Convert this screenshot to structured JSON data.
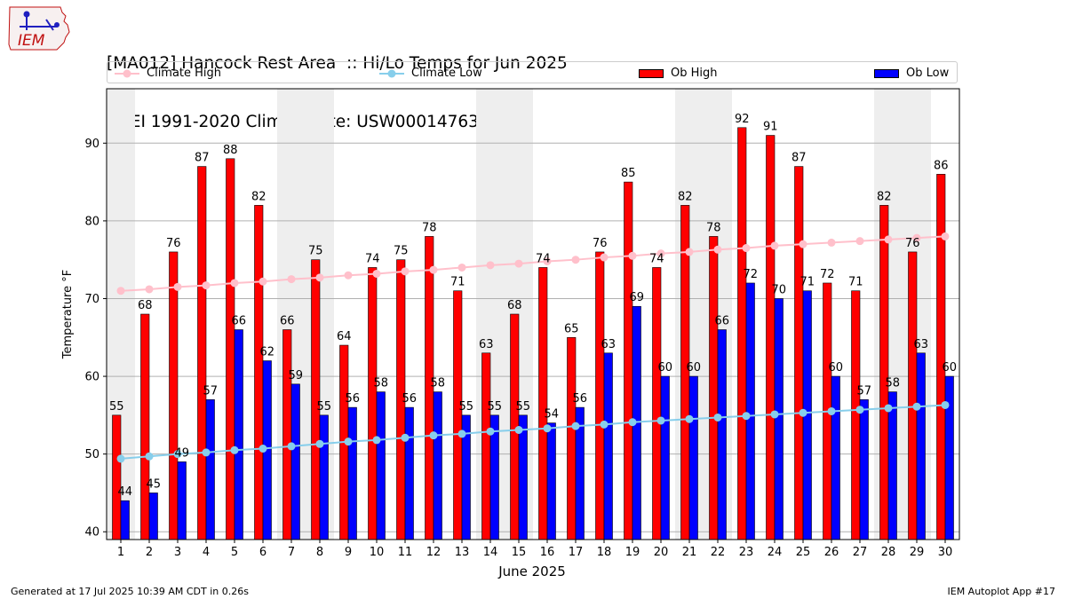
{
  "header": {
    "title_line1": "[MA012] Hancock Rest Area  :: Hi/Lo Temps for Jun 2025",
    "title_line2": "NCEI 1991-2020 Climate Site: USW00014763"
  },
  "logo": {
    "text": "IEM"
  },
  "footer": {
    "generated": "Generated at 17 Jul 2025 10:39 AM CDT in 0.26s",
    "app": "IEM Autoplot App #17"
  },
  "colors": {
    "ob_high": "#ff0000",
    "ob_low": "#0000ff",
    "climate_high": "#ffc0cb",
    "climate_low": "#87ceeb",
    "weekend_band": "#eeeeee"
  },
  "chart_data": {
    "type": "bar",
    "xlabel": "June 2025",
    "ylabel": "Temperature °F",
    "ylim": [
      39,
      97
    ],
    "yticks": [
      40,
      50,
      60,
      70,
      80,
      90
    ],
    "grid": true,
    "legend": "top",
    "categories": [
      1,
      2,
      3,
      4,
      5,
      6,
      7,
      8,
      9,
      10,
      11,
      12,
      13,
      14,
      15,
      16,
      17,
      18,
      19,
      20,
      21,
      22,
      23,
      24,
      25,
      26,
      27,
      28,
      29,
      30
    ],
    "weekend_days": [
      1,
      7,
      8,
      14,
      15,
      21,
      22,
      28,
      29
    ],
    "series": [
      {
        "name": "Ob High",
        "kind": "bar",
        "values": [
          55,
          68,
          76,
          87,
          88,
          82,
          66,
          75,
          64,
          74,
          75,
          78,
          71,
          63,
          68,
          74,
          65,
          76,
          85,
          74,
          82,
          78,
          92,
          91,
          87,
          72,
          71,
          82,
          76,
          86
        ]
      },
      {
        "name": "Ob Low",
        "kind": "bar",
        "values": [
          44,
          45,
          49,
          57,
          66,
          62,
          59,
          55,
          56,
          58,
          56,
          58,
          55,
          55,
          55,
          54,
          56,
          63,
          69,
          60,
          60,
          66,
          72,
          70,
          71,
          60,
          57,
          58,
          63,
          60
        ]
      },
      {
        "name": "Climate High",
        "kind": "line",
        "values": [
          71.0,
          71.2,
          71.5,
          71.7,
          72.0,
          72.2,
          72.5,
          72.7,
          73.0,
          73.2,
          73.5,
          73.7,
          74.0,
          74.3,
          74.5,
          74.8,
          75.0,
          75.3,
          75.5,
          75.8,
          76.0,
          76.3,
          76.5,
          76.8,
          77.0,
          77.2,
          77.4,
          77.6,
          77.8,
          78.0
        ]
      },
      {
        "name": "Climate Low",
        "kind": "line",
        "values": [
          49.4,
          49.7,
          50.0,
          50.2,
          50.5,
          50.7,
          51.0,
          51.3,
          51.6,
          51.8,
          52.1,
          52.4,
          52.6,
          52.9,
          53.1,
          53.3,
          53.6,
          53.8,
          54.1,
          54.3,
          54.5,
          54.7,
          54.9,
          55.1,
          55.3,
          55.5,
          55.7,
          55.9,
          56.1,
          56.3
        ]
      }
    ]
  }
}
